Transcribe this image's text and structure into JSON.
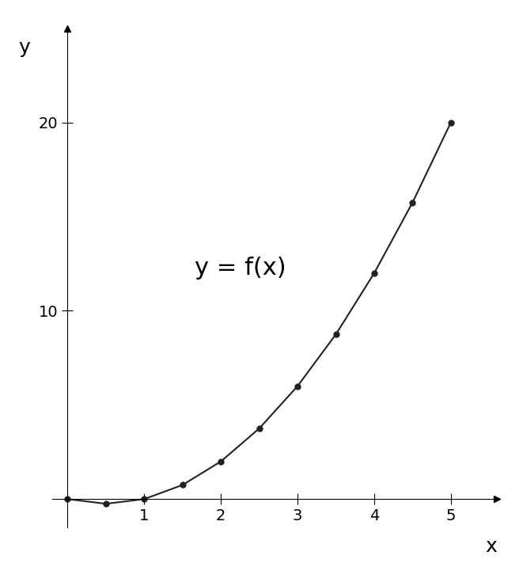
{
  "chart_data": {
    "type": "line",
    "x": [
      0,
      0.5,
      1,
      1.5,
      2,
      2.5,
      3,
      3.5,
      4,
      4.5,
      5
    ],
    "values": [
      0,
      -0.25,
      0,
      0.75,
      2,
      3.75,
      6,
      8.75,
      12,
      15.75,
      20
    ],
    "color": "#222222",
    "marker": "o",
    "line_style": "solid",
    "x_label": "x",
    "y_label": "y",
    "annotation": "y = f(x)",
    "xlim": [
      -0.2,
      5.6
    ],
    "ylim": [
      -1.5,
      25
    ],
    "xticks": [
      1,
      2,
      3,
      4,
      5
    ],
    "yticks": [
      10,
      20
    ],
    "grid": false
  }
}
